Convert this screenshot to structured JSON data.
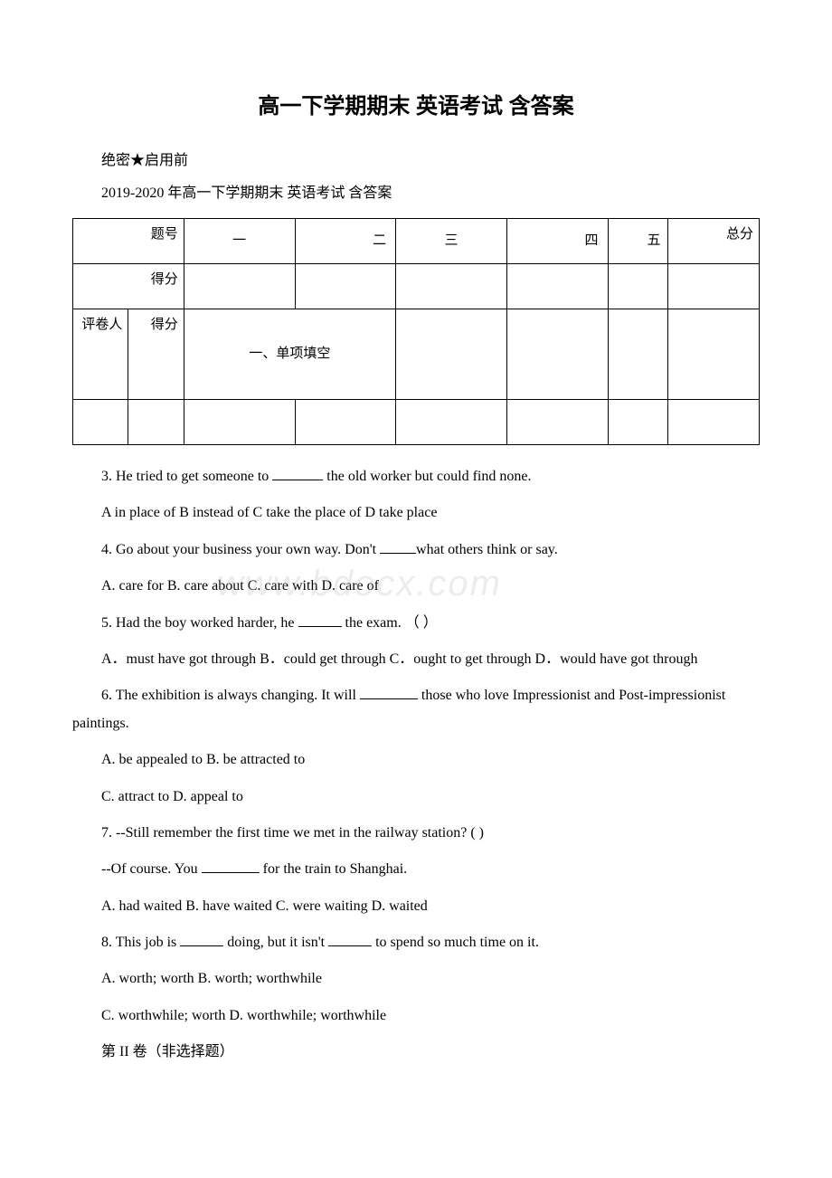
{
  "title": "高一下学期期末 英语考试 含答案",
  "meta": {
    "confidential": "绝密★启用前",
    "year_line": "2019-2020 年高一下学期期末 英语考试 含答案"
  },
  "score_table": {
    "row1_label": "题号",
    "cols": [
      "一",
      "二",
      "三",
      "四",
      "五"
    ],
    "total_label": "总分",
    "row2_label": "得分",
    "inner_left": "评卷人",
    "inner_right": "得分",
    "section_label": "一、单项填空"
  },
  "questions": {
    "q3": {
      "text_a": "3. He tried to get someone to ",
      "text_b": " the old worker but could find none.",
      "opts": "A in place of B instead of C take the place of D take place"
    },
    "q4": {
      "text_a": "4. Go about your business your own way. Don't ",
      "text_b": "what others think or say.",
      "opts": " A. care for B. care about C. care with D. care of"
    },
    "q5": {
      "text_a": "5. Had the boy worked harder, he ",
      "text_b": " the exam. （ ）",
      "opts": " A．must have got through B．could get through C．ought to get through D．would have got through"
    },
    "q6": {
      "text_a": "6. The exhibition is always changing. It will ",
      "text_b": " those who love Impressionist and Post-impressionist paintings.",
      "opts_a": "A. be appealed to B. be attracted to",
      "opts_b": "C. attract to D. appeal to"
    },
    "q7": {
      "text": "7.  --Still remember the first time we met in the railway station? ( )",
      "sub_a": " --Of course. You ",
      "sub_b": " for the train to Shanghai.",
      "opts": " A. had waited B. have waited C. were waiting D. waited"
    },
    "q8": {
      "text_a": "8. This job is ",
      "text_b": " doing, but it isn't ",
      "text_c": " to spend so much time on it.",
      "opts_a": "A. worth; worth  B. worth; worthwhile",
      "opts_b": "C. worthwhile; worth  D. worthwhile; worthwhile"
    },
    "part2": "第 II 卷（非选择题）"
  },
  "watermark": "www.bdocx.com",
  "blank_widths": {
    "w56": "56px",
    "w40": "40px",
    "w48": "48px",
    "w64": "64px"
  }
}
